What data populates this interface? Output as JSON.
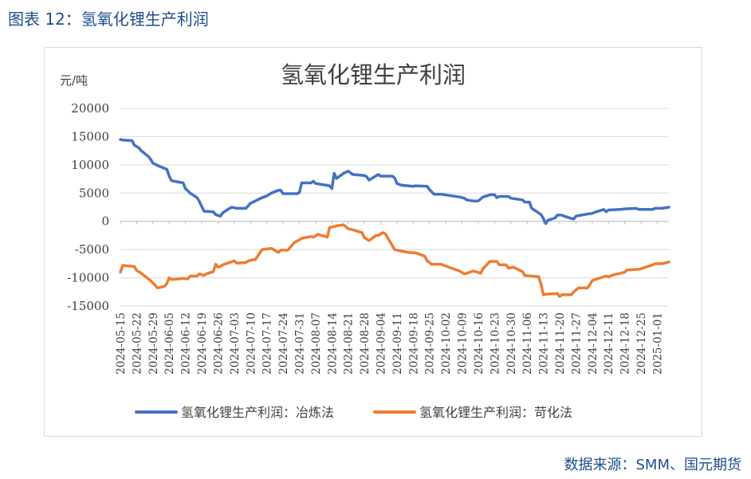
{
  "figure_caption": "图表 12：氢氧化锂生产利润",
  "source_note": "数据来源：SMM、国元期货",
  "colors": {
    "series1": "#4472c4",
    "series2": "#ed7d31",
    "grid": "#d9d9d9",
    "text": "#404040",
    "caption": "#1f4e8c"
  },
  "chart_data": {
    "type": "line",
    "title": "氢氧化锂生产利润",
    "ylabel": "元/吨",
    "xlabel": "",
    "ylim": [
      -15000,
      20000
    ],
    "yticks": [
      20000,
      15000,
      10000,
      5000,
      0,
      -5000,
      -10000,
      -15000
    ],
    "ytick_labels": [
      "20000",
      "15000",
      "10000",
      "5000",
      "0",
      "-5000",
      "-10000",
      "-15000"
    ],
    "x_range": [
      "2024-05-15",
      "2025-01-06"
    ],
    "x_tick_labels": [
      "2024-05-15",
      "2024-05-22",
      "2024-05-29",
      "2024-06-05",
      "2024-06-12",
      "2024-06-19",
      "2024-06-26",
      "2024-07-03",
      "2024-07-10",
      "2024-07-17",
      "2024-07-24",
      "2024-07-31",
      "2024-08-07",
      "2024-08-14",
      "2024-08-21",
      "2024-08-28",
      "2024-09-04",
      "2024-09-11",
      "2024-09-18",
      "2024-09-25",
      "2024-10-02",
      "2024-10-09",
      "2024-10-16",
      "2024-10-23",
      "2024-10-30",
      "2024-11-06",
      "2024-11-13",
      "2024-11-20",
      "2024-11-27",
      "2024-12-04",
      "2024-12-11",
      "2024-12-18",
      "2024-12-25",
      "2025-01-01"
    ],
    "grid": true,
    "legend_position": "bottom",
    "series": [
      {
        "name": "氢氧化锂生产利润：冶炼法",
        "color": "#4472c4",
        "points": [
          [
            "2024-05-15",
            14500
          ],
          [
            "2024-05-16",
            14400
          ],
          [
            "2024-05-20",
            14300
          ],
          [
            "2024-05-21",
            13500
          ],
          [
            "2024-05-23",
            13000
          ],
          [
            "2024-05-24",
            12500
          ],
          [
            "2024-05-27",
            11500
          ],
          [
            "2024-05-28",
            11000
          ],
          [
            "2024-05-29",
            10300
          ],
          [
            "2024-05-31",
            9900
          ],
          [
            "2024-06-04",
            9200
          ],
          [
            "2024-06-05",
            8000
          ],
          [
            "2024-06-06",
            7200
          ],
          [
            "2024-06-11",
            6800
          ],
          [
            "2024-06-12",
            5800
          ],
          [
            "2024-06-14",
            5000
          ],
          [
            "2024-06-17",
            4200
          ],
          [
            "2024-06-18",
            3500
          ],
          [
            "2024-06-20",
            1800
          ],
          [
            "2024-06-24",
            1700
          ],
          [
            "2024-06-25",
            1200
          ],
          [
            "2024-06-27",
            900
          ],
          [
            "2024-06-28",
            1500
          ],
          [
            "2024-07-01",
            2300
          ],
          [
            "2024-07-02",
            2500
          ],
          [
            "2024-07-04",
            2300
          ],
          [
            "2024-07-08",
            2300
          ],
          [
            "2024-07-10",
            3200
          ],
          [
            "2024-07-12",
            3600
          ],
          [
            "2024-07-15",
            4200
          ],
          [
            "2024-07-17",
            4500
          ],
          [
            "2024-07-19",
            5000
          ],
          [
            "2024-07-22",
            5500
          ],
          [
            "2024-07-23",
            5500
          ],
          [
            "2024-07-24",
            4900
          ],
          [
            "2024-07-30",
            4900
          ],
          [
            "2024-07-31",
            5100
          ],
          [
            "2024-08-01",
            6800
          ],
          [
            "2024-08-05",
            6800
          ],
          [
            "2024-08-06",
            7100
          ],
          [
            "2024-08-07",
            6700
          ],
          [
            "2024-08-13",
            6300
          ],
          [
            "2024-08-14",
            5800
          ],
          [
            "2024-08-15",
            8500
          ],
          [
            "2024-08-16",
            7600
          ],
          [
            "2024-08-19",
            8500
          ],
          [
            "2024-08-20",
            8700
          ],
          [
            "2024-08-21",
            8900
          ],
          [
            "2024-08-22",
            8600
          ],
          [
            "2024-08-23",
            8300
          ],
          [
            "2024-08-28",
            8100
          ],
          [
            "2024-08-29",
            7900
          ],
          [
            "2024-08-30",
            7300
          ],
          [
            "2024-09-03",
            8300
          ],
          [
            "2024-09-04",
            8000
          ],
          [
            "2024-09-09",
            8000
          ],
          [
            "2024-09-10",
            7700
          ],
          [
            "2024-09-11",
            6700
          ],
          [
            "2024-09-13",
            6400
          ],
          [
            "2024-09-18",
            6200
          ],
          [
            "2024-09-19",
            6300
          ],
          [
            "2024-09-24",
            6200
          ],
          [
            "2024-09-25",
            5600
          ],
          [
            "2024-09-27",
            4800
          ],
          [
            "2024-09-30",
            4800
          ],
          [
            "2024-10-08",
            4300
          ],
          [
            "2024-10-10",
            4100
          ],
          [
            "2024-10-11",
            3800
          ],
          [
            "2024-10-14",
            3600
          ],
          [
            "2024-10-16",
            3600
          ],
          [
            "2024-10-18",
            4300
          ],
          [
            "2024-10-21",
            4700
          ],
          [
            "2024-10-23",
            4700
          ],
          [
            "2024-10-24",
            4200
          ],
          [
            "2024-10-25",
            4400
          ],
          [
            "2024-10-29",
            4400
          ],
          [
            "2024-10-30",
            4100
          ],
          [
            "2024-11-04",
            3800
          ],
          [
            "2024-11-05",
            3400
          ],
          [
            "2024-11-07",
            3400
          ],
          [
            "2024-11-08",
            2300
          ],
          [
            "2024-11-12",
            1200
          ],
          [
            "2024-11-13",
            500
          ],
          [
            "2024-11-14",
            -400
          ],
          [
            "2024-11-15",
            200
          ],
          [
            "2024-11-18",
            600
          ],
          [
            "2024-11-19",
            1100
          ],
          [
            "2024-11-21",
            1100
          ],
          [
            "2024-11-22",
            900
          ],
          [
            "2024-11-26",
            400
          ],
          [
            "2024-11-27",
            900
          ],
          [
            "2024-11-28",
            1000
          ],
          [
            "2024-12-02",
            1300
          ],
          [
            "2024-12-04",
            1400
          ],
          [
            "2024-12-05",
            1600
          ],
          [
            "2024-12-09",
            2100
          ],
          [
            "2024-12-10",
            1700
          ],
          [
            "2024-12-11",
            2000
          ],
          [
            "2024-12-16",
            2100
          ],
          [
            "2024-12-18",
            2200
          ],
          [
            "2024-12-23",
            2300
          ],
          [
            "2024-12-24",
            2100
          ],
          [
            "2024-12-30",
            2100
          ],
          [
            "2024-12-31",
            2300
          ],
          [
            "2025-01-03",
            2300
          ],
          [
            "2025-01-06",
            2500
          ]
        ]
      },
      {
        "name": "氢氧化锂生产利润：苛化法",
        "color": "#ed7d31",
        "points": [
          [
            "2024-05-15",
            -9000
          ],
          [
            "2024-05-16",
            -7800
          ],
          [
            "2024-05-21",
            -8000
          ],
          [
            "2024-05-22",
            -8700
          ],
          [
            "2024-05-24",
            -9200
          ],
          [
            "2024-05-28",
            -10500
          ],
          [
            "2024-05-29",
            -10900
          ],
          [
            "2024-05-31",
            -11800
          ],
          [
            "2024-06-03",
            -11500
          ],
          [
            "2024-06-04",
            -11000
          ],
          [
            "2024-06-05",
            -10000
          ],
          [
            "2024-06-06",
            -10300
          ],
          [
            "2024-06-11",
            -10100
          ],
          [
            "2024-06-13",
            -10200
          ],
          [
            "2024-06-14",
            -9700
          ],
          [
            "2024-06-17",
            -9700
          ],
          [
            "2024-06-18",
            -9300
          ],
          [
            "2024-06-20",
            -9600
          ],
          [
            "2024-06-21",
            -9300
          ],
          [
            "2024-06-24",
            -8900
          ],
          [
            "2024-06-25",
            -7600
          ],
          [
            "2024-06-26",
            -8100
          ],
          [
            "2024-06-27",
            -8000
          ],
          [
            "2024-06-28",
            -7700
          ],
          [
            "2024-07-01",
            -7300
          ],
          [
            "2024-07-03",
            -7000
          ],
          [
            "2024-07-04",
            -7400
          ],
          [
            "2024-07-08",
            -7300
          ],
          [
            "2024-07-09",
            -7000
          ],
          [
            "2024-07-11",
            -6800
          ],
          [
            "2024-07-12",
            -6800
          ],
          [
            "2024-07-15",
            -5000
          ],
          [
            "2024-07-19",
            -4800
          ],
          [
            "2024-07-22",
            -5500
          ],
          [
            "2024-07-23",
            -5100
          ],
          [
            "2024-07-26",
            -5100
          ],
          [
            "2024-07-29",
            -3700
          ],
          [
            "2024-07-31",
            -3300
          ],
          [
            "2024-08-01",
            -3000
          ],
          [
            "2024-08-05",
            -2700
          ],
          [
            "2024-08-06",
            -2800
          ],
          [
            "2024-08-08",
            -2300
          ],
          [
            "2024-08-12",
            -2800
          ],
          [
            "2024-08-13",
            -1100
          ],
          [
            "2024-08-16",
            -800
          ],
          [
            "2024-08-19",
            -600
          ],
          [
            "2024-08-21",
            -1300
          ],
          [
            "2024-08-23",
            -1500
          ],
          [
            "2024-08-27",
            -2000
          ],
          [
            "2024-08-28",
            -2900
          ],
          [
            "2024-08-30",
            -3400
          ],
          [
            "2024-09-02",
            -2500
          ],
          [
            "2024-09-03",
            -2500
          ],
          [
            "2024-09-04",
            -2200
          ],
          [
            "2024-09-05",
            -2000
          ],
          [
            "2024-09-06",
            -2200
          ],
          [
            "2024-09-09",
            -4300
          ],
          [
            "2024-09-10",
            -5000
          ],
          [
            "2024-09-12",
            -5200
          ],
          [
            "2024-09-16",
            -5500
          ],
          [
            "2024-09-19",
            -5600
          ],
          [
            "2024-09-20",
            -5700
          ],
          [
            "2024-09-23",
            -6200
          ],
          [
            "2024-09-24",
            -7000
          ],
          [
            "2024-09-26",
            -7600
          ],
          [
            "2024-09-30",
            -7600
          ],
          [
            "2024-10-08",
            -8800
          ],
          [
            "2024-10-10",
            -9300
          ],
          [
            "2024-10-14",
            -8800
          ],
          [
            "2024-10-17",
            -9200
          ],
          [
            "2024-10-18",
            -8400
          ],
          [
            "2024-10-21",
            -7100
          ],
          [
            "2024-10-24",
            -7100
          ],
          [
            "2024-10-25",
            -7700
          ],
          [
            "2024-10-28",
            -7700
          ],
          [
            "2024-10-29",
            -8300
          ],
          [
            "2024-10-31",
            -8100
          ],
          [
            "2024-11-04",
            -8900
          ],
          [
            "2024-11-05",
            -9600
          ],
          [
            "2024-11-08",
            -9700
          ],
          [
            "2024-11-11",
            -9800
          ],
          [
            "2024-11-12",
            -11200
          ],
          [
            "2024-11-13",
            -13000
          ],
          [
            "2024-11-14",
            -12900
          ],
          [
            "2024-11-19",
            -12800
          ],
          [
            "2024-11-20",
            -13300
          ],
          [
            "2024-11-21",
            -13000
          ],
          [
            "2024-11-25",
            -13000
          ],
          [
            "2024-11-26",
            -12500
          ],
          [
            "2024-11-28",
            -11800
          ],
          [
            "2024-12-02",
            -11800
          ],
          [
            "2024-12-03",
            -11200
          ],
          [
            "2024-12-04",
            -10500
          ],
          [
            "2024-12-06",
            -10200
          ],
          [
            "2024-12-10",
            -9700
          ],
          [
            "2024-12-11",
            -9800
          ],
          [
            "2024-12-13",
            -9500
          ],
          [
            "2024-12-16",
            -9200
          ],
          [
            "2024-12-18",
            -9000
          ],
          [
            "2024-12-19",
            -8600
          ],
          [
            "2024-12-24",
            -8500
          ],
          [
            "2024-12-25",
            -8400
          ],
          [
            "2024-12-30",
            -7700
          ],
          [
            "2024-12-31",
            -7500
          ],
          [
            "2025-01-03",
            -7500
          ],
          [
            "2025-01-06",
            -7200
          ]
        ]
      }
    ]
  }
}
